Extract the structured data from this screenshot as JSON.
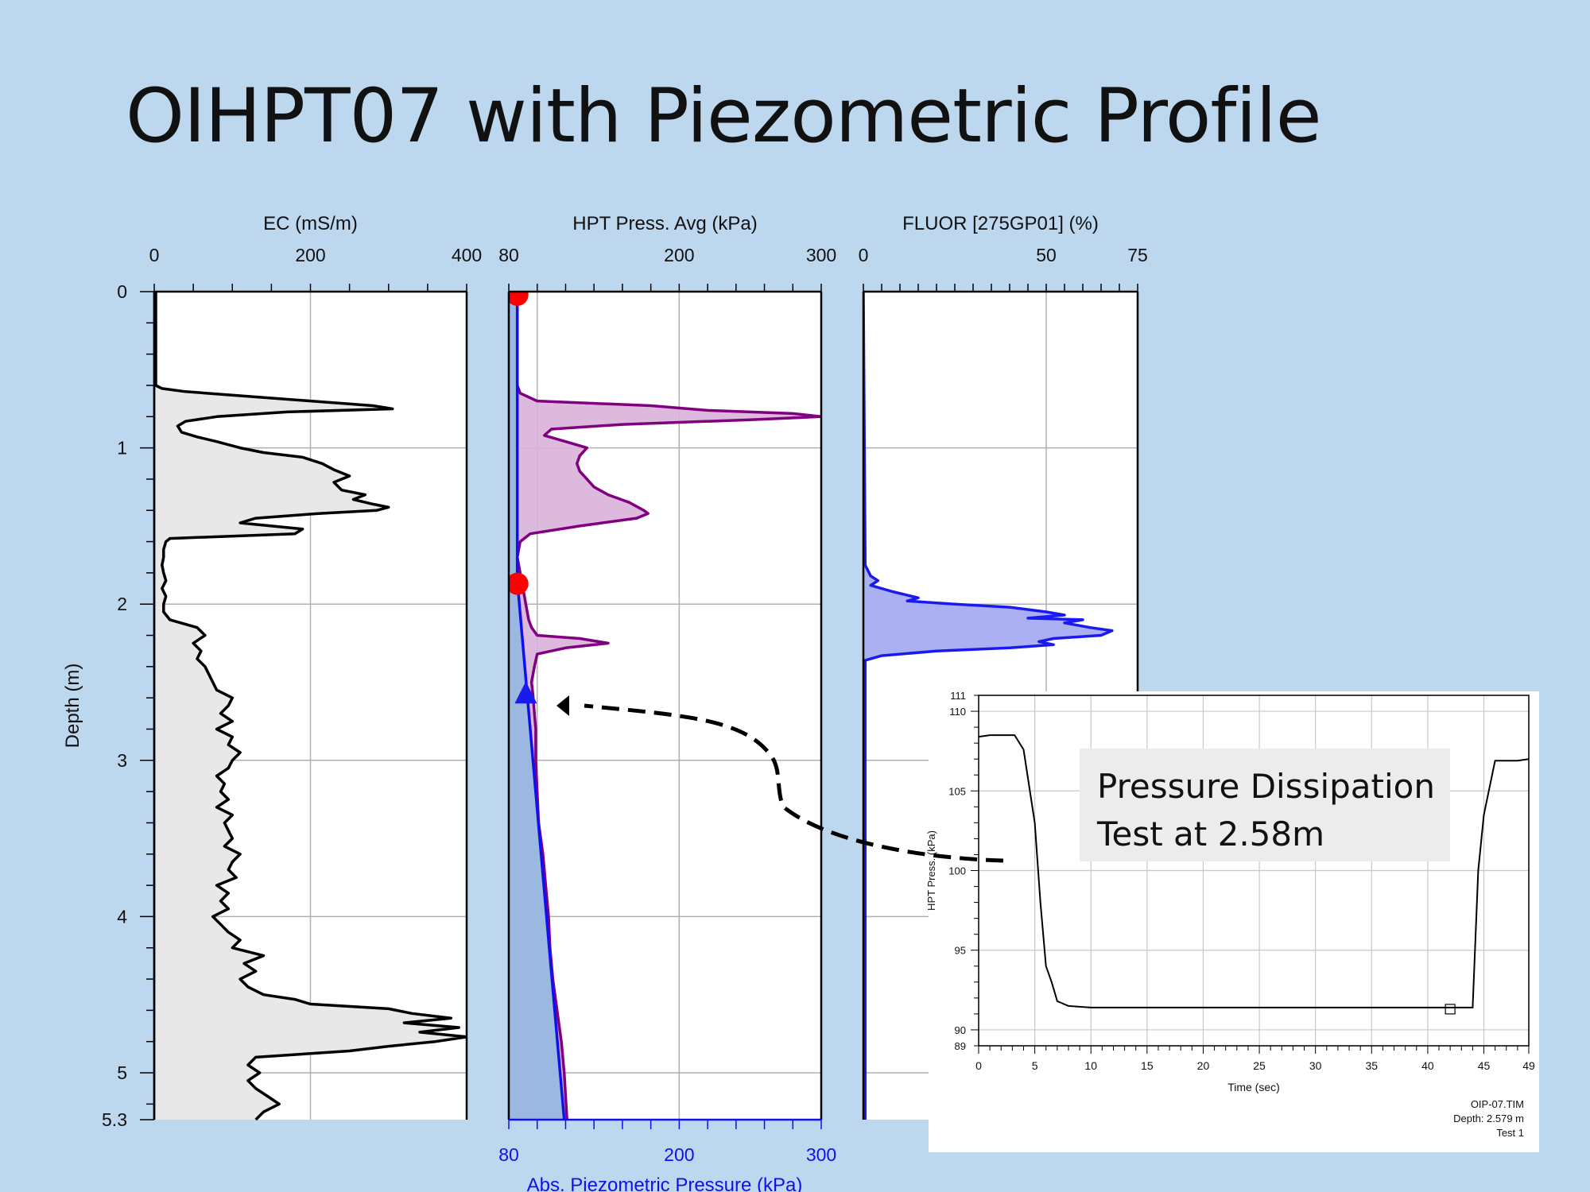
{
  "slide": {
    "title": "OIHPT07 with Piezometric Profile"
  },
  "depth_axis": {
    "label": "Depth (m)",
    "ticks": [
      "0",
      "1",
      "2",
      "3",
      "4",
      "5",
      "5.3"
    ]
  },
  "callout": {
    "line1": "Pressure Dissipation",
    "line2": "Test at 2.58m"
  },
  "inset_info": {
    "file": "OIP-07.TIM",
    "depth": "Depth: 2.579 m",
    "test": "Test 1"
  },
  "colors": {
    "background": "#bdd7ee",
    "ec_fill": "#e8e8e8",
    "hpt_line": "#800080",
    "hpt_fill": "#d9b3d9",
    "piezo_line": "#1010ee",
    "piezo_fill": "#9bb8e0",
    "fluor_line": "#1a1aee",
    "fluor_fill": "#aab0f2",
    "marker_red": "#ff0000",
    "marker_blue": "#1a1aee"
  },
  "chart_data": [
    {
      "type": "line",
      "name": "ec-track",
      "title": "EC (mS/m)",
      "xlabel": "EC (mS/m)",
      "ylabel": "Depth (m)",
      "xlim": [
        0,
        400
      ],
      "ylim": [
        0,
        5.3
      ],
      "x_ticks": [
        "0",
        "200",
        "400"
      ],
      "y_ticks": [
        "0",
        "1",
        "2",
        "3",
        "4",
        "5",
        "5.3"
      ],
      "grid": true,
      "series": [
        {
          "depth": [
            0,
            0.6,
            0.62,
            0.64,
            0.67,
            0.7,
            0.73,
            0.75,
            0.77,
            0.8,
            0.83,
            0.86,
            0.9,
            0.93,
            0.96,
            1.0,
            1.03,
            1.06,
            1.1,
            1.14,
            1.18,
            1.22,
            1.27,
            1.3,
            1.33,
            1.36,
            1.38,
            1.4,
            1.42,
            1.45,
            1.48,
            1.5,
            1.52,
            1.55,
            1.58,
            1.6,
            1.65,
            1.7,
            1.75,
            1.8,
            1.85,
            1.9,
            1.95,
            2.0,
            2.05,
            2.1,
            2.15,
            2.2,
            2.25,
            2.3,
            2.35,
            2.4,
            2.45,
            2.5,
            2.55,
            2.6,
            2.65,
            2.7,
            2.75,
            2.8,
            2.85,
            2.9,
            2.95,
            3.0,
            3.05,
            3.1,
            3.15,
            3.2,
            3.25,
            3.3,
            3.35,
            3.4,
            3.45,
            3.5,
            3.55,
            3.6,
            3.65,
            3.7,
            3.75,
            3.8,
            3.85,
            3.9,
            3.95,
            4.0,
            4.05,
            4.1,
            4.15,
            4.2,
            4.25,
            4.3,
            4.35,
            4.4,
            4.45,
            4.5,
            4.53,
            4.56,
            4.59,
            4.62,
            4.65,
            4.68,
            4.71,
            4.74,
            4.77,
            4.8,
            4.83,
            4.86,
            4.9,
            4.95,
            5.0,
            5.05,
            5.1,
            5.15,
            5.2,
            5.25,
            5.3
          ],
          "x": [
            2,
            2,
            10,
            40,
            120,
            200,
            280,
            305,
            170,
            80,
            40,
            30,
            35,
            55,
            80,
            110,
            140,
            190,
            215,
            230,
            250,
            230,
            240,
            270,
            255,
            280,
            300,
            285,
            210,
            130,
            110,
            150,
            190,
            180,
            20,
            15,
            12,
            12,
            10,
            12,
            15,
            10,
            15,
            12,
            12,
            20,
            55,
            65,
            50,
            60,
            55,
            65,
            70,
            75,
            80,
            100,
            95,
            85,
            100,
            80,
            100,
            95,
            110,
            100,
            95,
            80,
            90,
            85,
            95,
            80,
            100,
            90,
            95,
            100,
            90,
            110,
            100,
            95,
            105,
            80,
            95,
            85,
            95,
            75,
            85,
            95,
            110,
            100,
            140,
            115,
            130,
            110,
            120,
            140,
            180,
            200,
            300,
            330,
            380,
            320,
            390,
            340,
            400,
            360,
            300,
            250,
            130,
            120,
            135,
            120,
            130,
            145,
            160,
            140,
            130
          ]
        }
      ]
    },
    {
      "type": "area",
      "name": "hpt-track",
      "title": "HPT Press. Avg (kPa)",
      "xlabel": "Abs. Piezometric Pressure (kPa)",
      "ylabel": "Depth (m)",
      "xlim": [
        80,
        300
      ],
      "ylim": [
        0,
        5.3
      ],
      "x_ticks_top": [
        "80",
        "200",
        "300"
      ],
      "x_ticks_bottom": [
        "80",
        "200",
        "300"
      ],
      "grid": true,
      "series": [
        {
          "name": "HPT Press. Avg (kPa)",
          "depth": [
            0.0,
            0.3,
            0.6,
            0.65,
            0.7,
            0.73,
            0.76,
            0.78,
            0.8,
            0.82,
            0.85,
            0.88,
            0.92,
            0.96,
            1.0,
            1.05,
            1.1,
            1.15,
            1.2,
            1.25,
            1.3,
            1.35,
            1.4,
            1.42,
            1.45,
            1.5,
            1.55,
            1.6,
            1.7,
            1.8,
            1.9,
            2.0,
            2.1,
            2.15,
            2.2,
            2.22,
            2.25,
            2.28,
            2.32,
            2.4,
            2.5,
            2.58,
            2.7,
            2.8,
            2.9,
            3.0,
            3.2,
            3.4,
            3.6,
            3.8,
            4.0,
            4.2,
            4.4,
            4.6,
            4.8,
            5.0,
            5.3
          ],
          "x": [
            86,
            86,
            86,
            88,
            100,
            180,
            220,
            280,
            300,
            250,
            160,
            110,
            105,
            120,
            135,
            130,
            128,
            130,
            135,
            140,
            150,
            165,
            175,
            178,
            170,
            130,
            95,
            88,
            86,
            88,
            90,
            92,
            94,
            96,
            100,
            130,
            150,
            120,
            100,
            98,
            96,
            97,
            98,
            99,
            99,
            99,
            100,
            101,
            104,
            106,
            108,
            109,
            111,
            114,
            117,
            119,
            121
          ]
        },
        {
          "name": "Abs. Piezometric Pressure (kPa)",
          "depth": [
            0,
            1.85,
            5.3
          ],
          "x": [
            86,
            86,
            119
          ]
        }
      ],
      "markers": [
        {
          "shape": "circle",
          "color": "red",
          "depth": 0.02,
          "x": 86
        },
        {
          "shape": "circle",
          "color": "red",
          "depth": 1.87,
          "x": 86
        },
        {
          "shape": "triangle",
          "color": "blue",
          "depth": 2.58,
          "x": 92
        }
      ]
    },
    {
      "type": "line",
      "name": "fluor-track",
      "title": "FLUOR [275GP01] (%)",
      "xlabel": "FLUOR [275GP01] (%)",
      "ylabel": "Depth (m)",
      "xlim": [
        0,
        75
      ],
      "ylim": [
        0,
        5.3
      ],
      "x_ticks": [
        "0",
        "50",
        "75"
      ],
      "grid": true,
      "series": [
        {
          "depth": [
            0,
            1.75,
            1.82,
            1.85,
            1.88,
            1.92,
            1.96,
            1.98,
            2.0,
            2.02,
            2.05,
            2.07,
            2.09,
            2.1,
            2.12,
            2.15,
            2.17,
            2.2,
            2.22,
            2.24,
            2.26,
            2.28,
            2.3,
            2.33,
            2.36,
            5.3
          ],
          "x": [
            0,
            0.5,
            2,
            4,
            2,
            8,
            15,
            12,
            25,
            40,
            50,
            55,
            45,
            60,
            55,
            62,
            68,
            65,
            52,
            48,
            52,
            40,
            20,
            5,
            0.5,
            0.5
          ]
        }
      ]
    },
    {
      "type": "line",
      "name": "dissipation-inset",
      "title": "",
      "xlabel": "Time (sec)",
      "ylabel": "HPT Press. (kPa)",
      "xlim": [
        0,
        49
      ],
      "ylim": [
        89,
        111
      ],
      "x_ticks": [
        "0",
        "5",
        "10",
        "15",
        "20",
        "25",
        "30",
        "35",
        "40",
        "45",
        "49"
      ],
      "y_ticks": [
        "89",
        "90",
        "95",
        "100",
        "105",
        "110",
        "111"
      ],
      "grid": true,
      "series": [
        {
          "x": [
            0,
            1,
            3.2,
            4,
            5,
            5.5,
            6,
            6.5,
            7,
            8,
            10,
            15,
            20,
            25,
            30,
            35,
            40,
            44,
            44.5,
            45,
            46,
            48,
            49
          ],
          "y": [
            108.4,
            108.5,
            108.5,
            107.6,
            103,
            98,
            94,
            93,
            91.8,
            91.5,
            91.4,
            91.4,
            91.4,
            91.4,
            91.4,
            91.4,
            91.4,
            91.4,
            100,
            103.5,
            106.9,
            106.9,
            107
          ]
        }
      ],
      "markers": [
        {
          "shape": "square",
          "x": 42,
          "y": 91.3
        }
      ]
    }
  ]
}
